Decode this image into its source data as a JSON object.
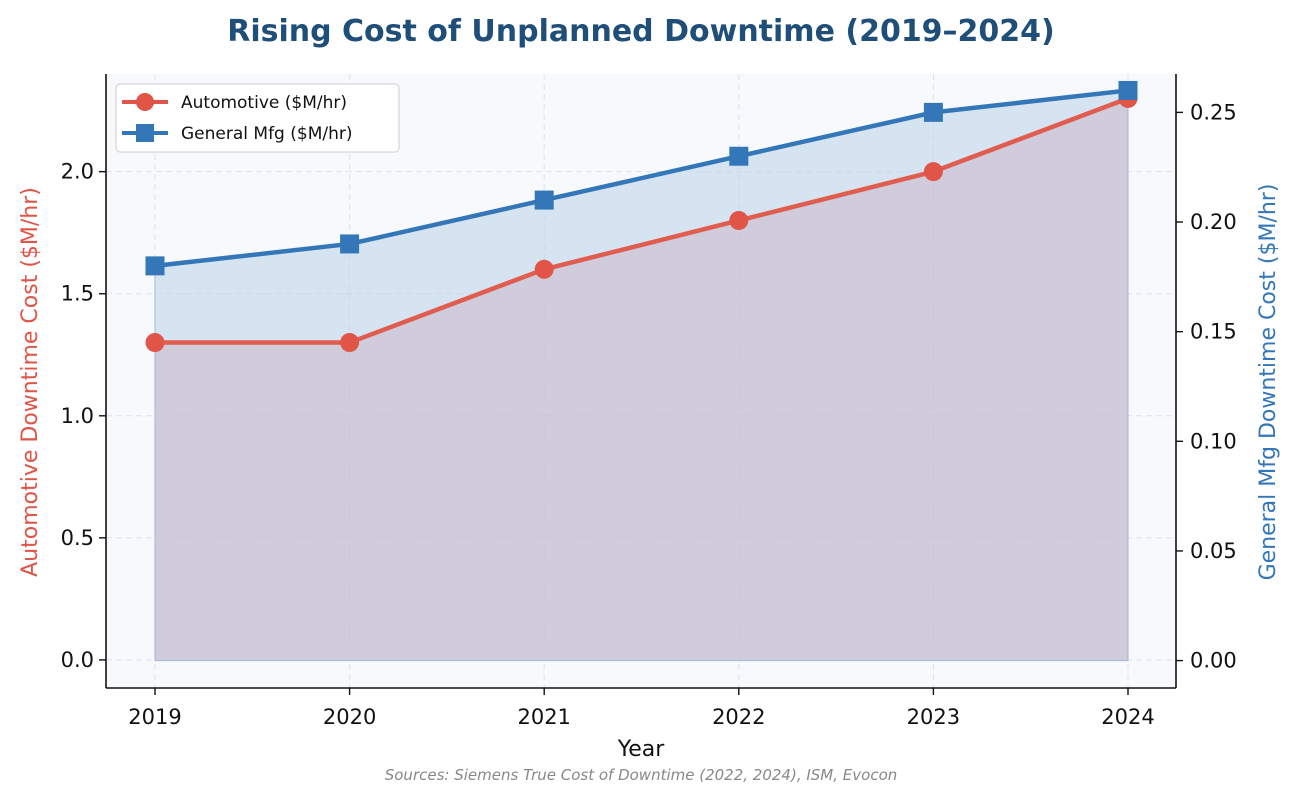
{
  "chart_data": {
    "type": "line",
    "title": "Rising Cost of Unplanned Downtime (2019–2024)",
    "xlabel": "Year",
    "ylabel_left": "Automotive Downtime Cost ($M/hr)",
    "ylabel_right": "General Mfg Downtime Cost ($M/hr)",
    "categories": [
      "2019",
      "2020",
      "2021",
      "2022",
      "2023",
      "2024"
    ],
    "series": [
      {
        "name": "Automotive ($M/hr)",
        "axis": "left",
        "marker": "circle",
        "color": "#e05547",
        "values": [
          1.3,
          1.3,
          1.6,
          1.8,
          2.0,
          2.3
        ]
      },
      {
        "name": "General Mfg ($M/hr)",
        "axis": "right",
        "marker": "square",
        "color": "#3477b8",
        "values": [
          0.18,
          0.19,
          0.21,
          0.23,
          0.25,
          0.26
        ]
      }
    ],
    "y_left": {
      "lim": [
        -0.115,
        2.4
      ],
      "ticks": [
        "0.0",
        "0.5",
        "1.0",
        "1.5",
        "2.0"
      ]
    },
    "y_right": {
      "lim": [
        -0.0125,
        0.2675
      ],
      "ticks": [
        "0.00",
        "0.05",
        "0.10",
        "0.15",
        "0.20",
        "0.25"
      ]
    },
    "grid": true,
    "area_fill": true,
    "legend_position": "top-left",
    "source_note": "Sources: Siemens True Cost of Downtime (2022, 2024), ISM, Evocon",
    "colors": {
      "title": "#1f4e79",
      "left_axis_label": "#e05547",
      "right_axis_label": "#3477b8",
      "plot_background": "#f7f9fc",
      "automotive_fill": "#c89aac",
      "general_fill": "#bcd3ea"
    }
  }
}
